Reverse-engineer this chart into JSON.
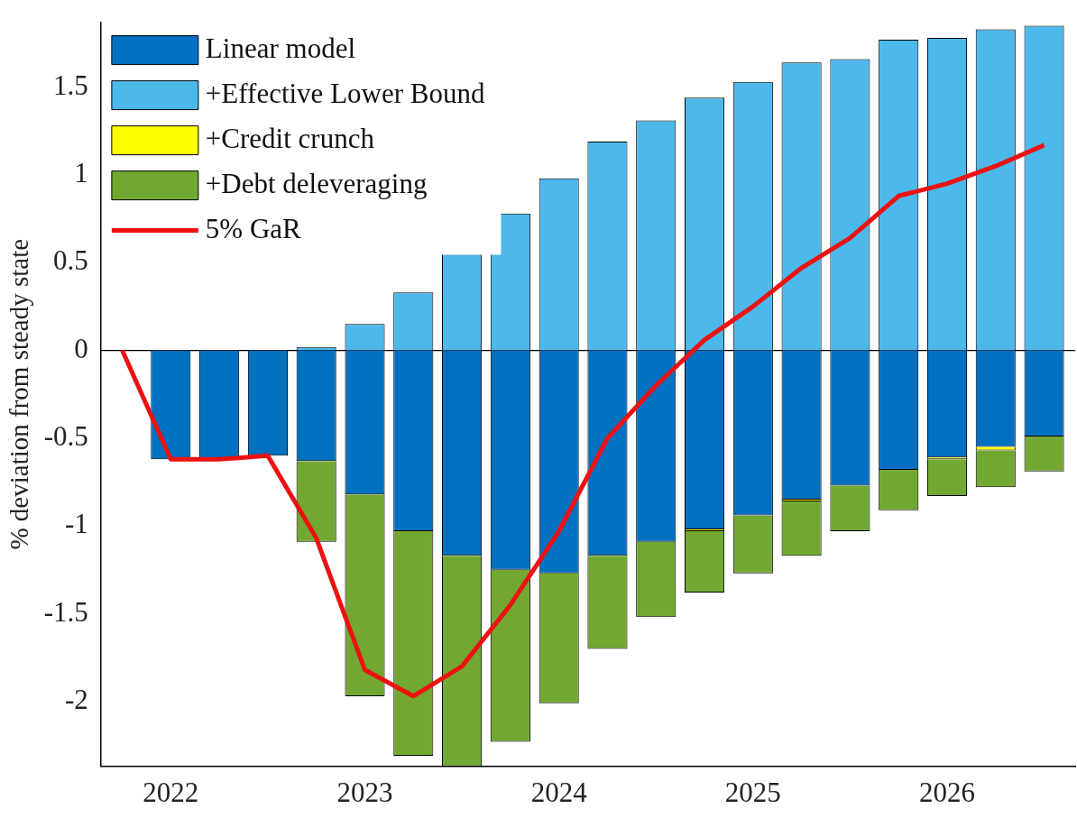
{
  "chart_data": {
    "type": "bar",
    "stacked": true,
    "ylabel": "% deviation from steady state",
    "x": [
      2022,
      2022.25,
      2022.5,
      2022.75,
      2023,
      2023.25,
      2023.5,
      2023.75,
      2024,
      2024.25,
      2024.5,
      2024.75,
      2025,
      2025.25,
      2025.5,
      2025.75,
      2026,
      2026.25,
      2026.5
    ],
    "xlim": [
      2021.64,
      2026.66
    ],
    "xticks": [
      2022,
      2023,
      2024,
      2025,
      2026
    ],
    "ylim": [
      -2.37,
      1.87
    ],
    "yticks": [
      -2,
      -1.5,
      -1,
      -0.5,
      0,
      0.5,
      1,
      1.5
    ],
    "grid": false,
    "legend": "top left",
    "ref_lines": [
      {
        "axis": "y",
        "value": 0,
        "color": "#000000"
      }
    ],
    "series": [
      {
        "name": "Linear model",
        "color": "#0070c0",
        "values": [
          -0.62,
          -0.62,
          -0.6,
          -0.63,
          -0.82,
          -1.03,
          -1.17,
          -1.25,
          -1.27,
          -1.17,
          -1.09,
          -1.02,
          -0.94,
          -0.85,
          -0.77,
          -0.68,
          -0.61,
          -0.55,
          -0.49
        ]
      },
      {
        "name": "+Effective Lower Bound",
        "color": "#4db8ea",
        "values": [
          0,
          0,
          0,
          0.02,
          0.15,
          0.33,
          0.55,
          0.78,
          0.98,
          1.19,
          1.31,
          1.44,
          1.53,
          1.64,
          1.66,
          1.77,
          1.78,
          1.83,
          1.85
        ]
      },
      {
        "name": "+Credit crunch",
        "color": "#ffff00",
        "values": [
          0,
          0,
          0,
          0,
          0,
          0,
          0,
          0,
          0,
          0,
          0,
          -0.01,
          null,
          -0.01,
          null,
          0,
          -0.01,
          -0.02,
          0
        ]
      },
      {
        "name": "+Debt deleveraging",
        "color": "#72a832",
        "values": [
          0,
          0,
          0,
          -0.46,
          -1.15,
          -1.28,
          -1.2,
          -0.98,
          -0.74,
          -0.53,
          -0.43,
          -0.35,
          -0.33,
          -0.31,
          -0.26,
          -0.23,
          -0.21,
          -0.21,
          -0.2
        ]
      },
      {
        "name": "5% GaR",
        "type": "line",
        "color": "#ee1111",
        "x": [
          2021.75,
          2022,
          2022.25,
          2022.5,
          2022.75,
          2023,
          2023.25,
          2023.5,
          2023.75,
          2024,
          2024.25,
          2024.5,
          2024.75,
          2025,
          2025.25,
          2025.5,
          2025.75,
          2026,
          2026.25,
          2026.5
        ],
        "values": [
          0,
          -0.62,
          -0.62,
          -0.6,
          -1.07,
          -1.82,
          -1.97,
          -1.8,
          -1.45,
          -1.03,
          -0.5,
          -0.2,
          0.06,
          0.25,
          0.47,
          0.64,
          0.88,
          0.95,
          1.05,
          1.17
        ]
      }
    ]
  }
}
